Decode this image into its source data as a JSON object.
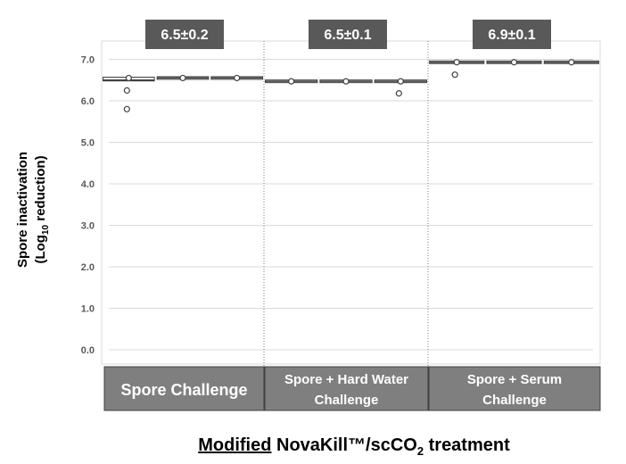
{
  "chart_data": {
    "type": "box",
    "ylabel_line1": "Spore inactivation",
    "ylabel_line2_prefix": "(Log",
    "ylabel_line2_sub": "10",
    "ylabel_line2_suffix": " reduction)",
    "ylim": [
      0,
      7.3
    ],
    "yticks": [
      "0.0",
      "1.0",
      "2.0",
      "3.0",
      "4.0",
      "5.0",
      "6.0",
      "7.0"
    ],
    "grid": true,
    "groups": [
      {
        "label_lines": [
          "Spore Challenge"
        ],
        "summary": "6.5±0.2",
        "replicates": [
          {
            "median": 6.5,
            "q1": 6.48,
            "q3": 6.57,
            "points": [
              6.55,
              6.25,
              5.8
            ]
          },
          {
            "median": 6.55,
            "q1": 6.55,
            "q3": 6.55,
            "points": [
              6.55
            ]
          },
          {
            "median": 6.55,
            "q1": 6.55,
            "q3": 6.55,
            "points": [
              6.55
            ]
          }
        ]
      },
      {
        "label_lines": [
          "Spore + Hard Water",
          "Challenge"
        ],
        "summary": "6.5±0.1",
        "replicates": [
          {
            "median": 6.47,
            "q1": 6.47,
            "q3": 6.47,
            "points": [
              6.47
            ]
          },
          {
            "median": 6.47,
            "q1": 6.47,
            "q3": 6.47,
            "points": [
              6.47
            ]
          },
          {
            "median": 6.47,
            "q1": 6.47,
            "q3": 6.47,
            "points": [
              6.47,
              6.18
            ]
          }
        ]
      },
      {
        "label_lines": [
          "Spore + Serum",
          "Challenge"
        ],
        "summary": "6.9±0.1",
        "replicates": [
          {
            "median": 6.93,
            "q1": 6.93,
            "q3": 6.93,
            "points": [
              6.93,
              6.63
            ]
          },
          {
            "median": 6.93,
            "q1": 6.93,
            "q3": 6.93,
            "points": [
              6.93
            ]
          },
          {
            "median": 6.93,
            "q1": 6.93,
            "q3": 6.93,
            "points": [
              6.93
            ]
          }
        ]
      }
    ],
    "caption_underlined": "Modified",
    "caption_rest_prefix": " NovaKill™/scCO",
    "caption_sub": "2",
    "caption_rest_suffix": " treatment",
    "colors": {
      "summary_box": "#595959",
      "category_box": "#7f7f7f",
      "grid": "#d9d9d9",
      "box_edge": "#404040",
      "point_edge": "#404040"
    }
  }
}
